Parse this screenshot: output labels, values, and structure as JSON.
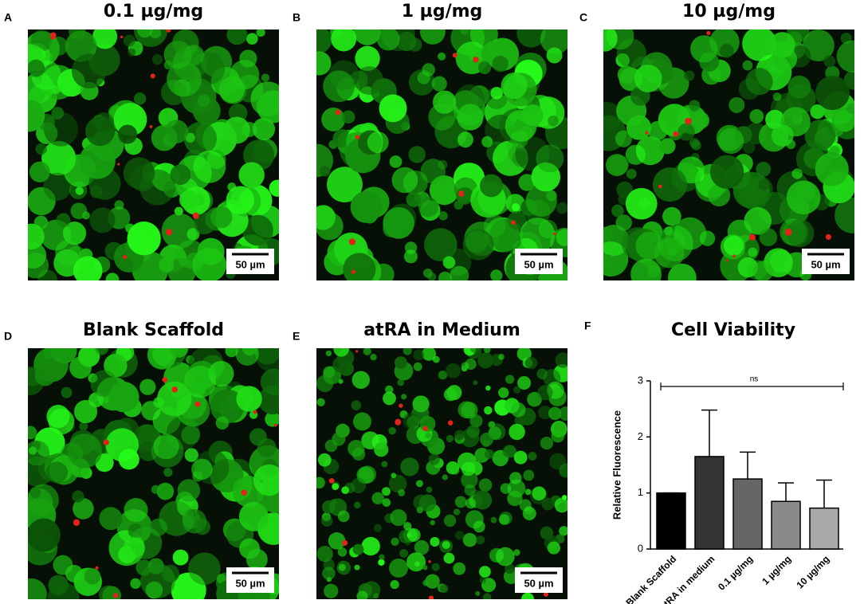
{
  "panels": [
    {
      "letter": "A",
      "title": "0.1 µg/mg",
      "scale_label": "50 µm"
    },
    {
      "letter": "B",
      "title": "1 µg/mg",
      "scale_label": "50 µm"
    },
    {
      "letter": "C",
      "title": "10 µg/mg",
      "scale_label": "50 µm"
    },
    {
      "letter": "D",
      "title": "Blank Scaffold",
      "scale_label": "50 µm"
    },
    {
      "letter": "E",
      "title": "atRA in Medium",
      "scale_label": "50 µm"
    }
  ],
  "chart_data": {
    "type": "bar",
    "letter": "F",
    "title": "Cell Viability",
    "y_label": "Relative Fluorescence",
    "categories": [
      "Blank Scaffold",
      "atRA in medium",
      "0.1 µg/mg",
      "1 µg/mg",
      "10 µg/mg"
    ],
    "values": [
      1.0,
      1.65,
      1.25,
      0.85,
      0.73
    ],
    "errors": [
      0,
      0.83,
      0.48,
      0.33,
      0.5
    ],
    "colors": [
      "#000000",
      "#333333",
      "#666666",
      "#8a8a8a",
      "#a9a9a9"
    ],
    "annotation": "ns",
    "ylim": [
      0,
      3
    ],
    "yticks": [
      0,
      1,
      2,
      3
    ]
  }
}
